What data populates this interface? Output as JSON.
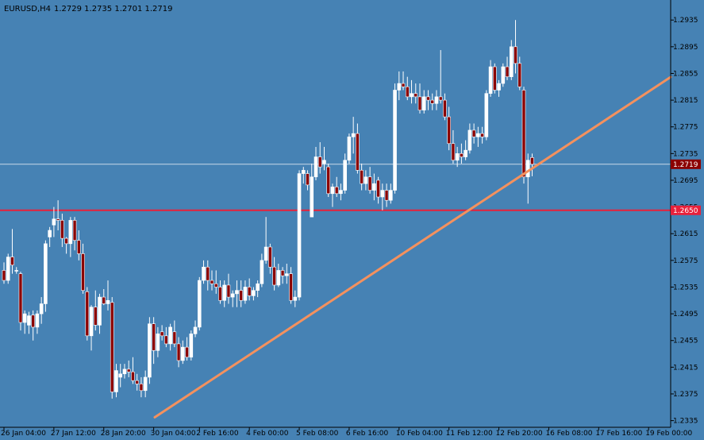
{
  "header": {
    "symbol_label": "EURUSD,H4",
    "ohlc_label": "1.2729 1.2735 1.2701 1.2719"
  },
  "price_tags": {
    "current": "1.2719",
    "level": "1.2650"
  },
  "colors": {
    "background": "#4682B4",
    "bull_body": "#FFFFFF",
    "bear_body": "#8B0000",
    "wick": "#FFFFFF",
    "trendline": "#F4915E",
    "level_line": "#E8203A",
    "current_line": "#C8D8E8",
    "axis": "#000000",
    "text": "#000000"
  },
  "chart_data": {
    "type": "candlestick",
    "title": "EURUSD,H4",
    "ylim": [
      1.2325,
      1.2965
    ],
    "yticks": [
      "1.2935",
      "1.2895",
      "1.2855",
      "1.2815",
      "1.2775",
      "1.2735",
      "1.2695",
      "1.2655",
      "1.2615",
      "1.2575",
      "1.2535",
      "1.2495",
      "1.2455",
      "1.2415",
      "1.2375",
      "1.2335"
    ],
    "xticks": [
      {
        "label": "26 Jan 04:00",
        "index": 0
      },
      {
        "label": "27 Jan 12:00",
        "index": 12
      },
      {
        "label": "28 Jan 20:00",
        "index": 24
      },
      {
        "label": "30 Jan 04:00",
        "index": 36
      },
      {
        "label": "2 Feb 16:00",
        "index": 47
      },
      {
        "label": "4 Feb 00:00",
        "index": 59
      },
      {
        "label": "5 Feb 08:00",
        "index": 71
      },
      {
        "label": "6 Feb 16:00",
        "index": 83
      },
      {
        "label": "10 Feb 04:00",
        "index": 95
      },
      {
        "label": "11 Feb 12:00",
        "index": 107
      },
      {
        "label": "12 Feb 20:00",
        "index": 119
      },
      {
        "label": "16 Feb 08:00",
        "index": 131
      },
      {
        "label": "17 Feb 16:00",
        "index": 143
      },
      {
        "label": "19 Feb 00:00",
        "index": 155
      }
    ],
    "candles": [
      [
        1.256,
        1.2572,
        1.254,
        1.2545
      ],
      [
        1.2545,
        1.2585,
        1.254,
        1.258
      ],
      [
        1.258,
        1.2622,
        1.2555,
        1.2568
      ],
      [
        1.256,
        1.2565,
        1.2555,
        1.256
      ],
      [
        1.2555,
        1.2558,
        1.247,
        1.2482
      ],
      [
        1.2482,
        1.25,
        1.2465,
        1.2495
      ],
      [
        1.2478,
        1.2498,
        1.2465,
        1.2492
      ],
      [
        1.2493,
        1.25,
        1.2455,
        1.2475
      ],
      [
        1.2475,
        1.25,
        1.2465,
        1.2495
      ],
      [
        1.2495,
        1.252,
        1.248,
        1.251
      ],
      [
        1.251,
        1.2605,
        1.2498,
        1.26
      ],
      [
        1.261,
        1.2625,
        1.2595,
        1.262
      ],
      [
        1.2628,
        1.2655,
        1.261,
        1.2637
      ],
      [
        1.2637,
        1.2665,
        1.262,
        1.2635
      ],
      [
        1.2635,
        1.2645,
        1.2595,
        1.2608
      ],
      [
        1.2608,
        1.261,
        1.2585,
        1.26
      ],
      [
        1.26,
        1.264,
        1.258,
        1.2635
      ],
      [
        1.2635,
        1.264,
        1.259,
        1.2605
      ],
      [
        1.2605,
        1.262,
        1.2575,
        1.2585
      ],
      [
        1.2585,
        1.26,
        1.2525,
        1.253
      ],
      [
        1.2528,
        1.2535,
        1.2455,
        1.2462
      ],
      [
        1.2462,
        1.2508,
        1.244,
        1.2505
      ],
      [
        1.2505,
        1.253,
        1.247,
        1.2478
      ],
      [
        1.2478,
        1.2525,
        1.2465,
        1.252
      ],
      [
        1.252,
        1.2532,
        1.2508,
        1.251
      ],
      [
        1.251,
        1.2545,
        1.25,
        1.2515
      ],
      [
        1.2512,
        1.252,
        1.2368,
        1.2378
      ],
      [
        1.2378,
        1.242,
        1.237,
        1.241
      ],
      [
        1.24,
        1.242,
        1.2385,
        1.2405
      ],
      [
        1.2405,
        1.242,
        1.2398,
        1.2412
      ],
      [
        1.2412,
        1.2425,
        1.24,
        1.2408
      ],
      [
        1.2408,
        1.243,
        1.239,
        1.2395
      ],
      [
        1.2395,
        1.2405,
        1.238,
        1.239
      ],
      [
        1.239,
        1.24,
        1.237,
        1.238
      ],
      [
        1.238,
        1.241,
        1.237,
        1.24
      ],
      [
        1.24,
        1.249,
        1.239,
        1.248
      ],
      [
        1.248,
        1.249,
        1.242,
        1.244
      ],
      [
        1.244,
        1.2475,
        1.243,
        1.2465
      ],
      [
        1.2468,
        1.2478,
        1.2455,
        1.2462
      ],
      [
        1.2462,
        1.2475,
        1.2445,
        1.245
      ],
      [
        1.245,
        1.248,
        1.244,
        1.2475
      ],
      [
        1.2468,
        1.2485,
        1.2445,
        1.245
      ],
      [
        1.245,
        1.246,
        1.2415,
        1.2425
      ],
      [
        1.2425,
        1.2455,
        1.242,
        1.2445
      ],
      [
        1.2445,
        1.246,
        1.2425,
        1.243
      ],
      [
        1.243,
        1.247,
        1.2425,
        1.2465
      ],
      [
        1.2465,
        1.2485,
        1.246,
        1.2475
      ],
      [
        1.2475,
        1.255,
        1.247,
        1.2545
      ],
      [
        1.2545,
        1.2575,
        1.254,
        1.2565
      ],
      [
        1.2565,
        1.2575,
        1.253,
        1.2545
      ],
      [
        1.2545,
        1.256,
        1.253,
        1.254
      ],
      [
        1.254,
        1.256,
        1.2525,
        1.2535
      ],
      [
        1.2535,
        1.2545,
        1.251,
        1.2515
      ],
      [
        1.2515,
        1.2545,
        1.2505,
        1.2538
      ],
      [
        1.2538,
        1.2555,
        1.251,
        1.252
      ],
      [
        1.252,
        1.253,
        1.2505,
        1.2525
      ],
      [
        1.2525,
        1.2545,
        1.2505,
        1.253
      ],
      [
        1.253,
        1.2545,
        1.2505,
        1.2515
      ],
      [
        1.2515,
        1.2545,
        1.251,
        1.2535
      ],
      [
        1.2535,
        1.2548,
        1.2515,
        1.2522
      ],
      [
        1.2522,
        1.2535,
        1.2515,
        1.253
      ],
      [
        1.253,
        1.2545,
        1.252,
        1.254
      ],
      [
        1.254,
        1.2585,
        1.2535,
        1.2575
      ],
      [
        1.2575,
        1.264,
        1.257,
        1.2595
      ],
      [
        1.2595,
        1.26,
        1.2555,
        1.2565
      ],
      [
        1.2565,
        1.258,
        1.253,
        1.2538
      ],
      [
        1.2538,
        1.257,
        1.2535,
        1.256
      ],
      [
        1.256,
        1.2565,
        1.254,
        1.2552
      ],
      [
        1.2552,
        1.257,
        1.254,
        1.2555
      ],
      [
        1.2555,
        1.2565,
        1.251,
        1.2515
      ],
      [
        1.2515,
        1.253,
        1.2505,
        1.252
      ],
      [
        1.252,
        1.271,
        1.2515,
        1.2705
      ],
      [
        1.2705,
        1.2715,
        1.269,
        1.271
      ],
      [
        1.2705,
        1.271,
        1.268,
        1.2688
      ],
      [
        1.264,
        1.272,
        1.264,
        1.27
      ],
      [
        1.27,
        1.2745,
        1.2695,
        1.273
      ],
      [
        1.273,
        1.2752,
        1.2705,
        1.2715
      ],
      [
        1.272,
        1.2745,
        1.271,
        1.2725
      ],
      [
        1.2715,
        1.272,
        1.267,
        1.2675
      ],
      [
        1.2675,
        1.269,
        1.2655,
        1.2685
      ],
      [
        1.2685,
        1.27,
        1.267,
        1.2675
      ],
      [
        1.2675,
        1.269,
        1.2665,
        1.268
      ],
      [
        1.268,
        1.2735,
        1.2675,
        1.2725
      ],
      [
        1.2725,
        1.2765,
        1.272,
        1.276
      ],
      [
        1.276,
        1.279,
        1.2735,
        1.2765
      ],
      [
        1.2765,
        1.278,
        1.2705,
        1.271
      ],
      [
        1.271,
        1.272,
        1.268,
        1.269
      ],
      [
        1.269,
        1.271,
        1.268,
        1.27
      ],
      [
        1.27,
        1.2715,
        1.2675,
        1.268
      ],
      [
        1.268,
        1.2705,
        1.2665,
        1.269
      ],
      [
        1.2695,
        1.27,
        1.266,
        1.267
      ],
      [
        1.267,
        1.269,
        1.265,
        1.268
      ],
      [
        1.268,
        1.269,
        1.2655,
        1.2665
      ],
      [
        1.2665,
        1.269,
        1.266,
        1.268
      ],
      [
        1.268,
        1.284,
        1.2675,
        1.283
      ],
      [
        1.283,
        1.2858,
        1.2815,
        1.284
      ],
      [
        1.284,
        1.2858,
        1.283,
        1.2835
      ],
      [
        1.2835,
        1.285,
        1.2815,
        1.282
      ],
      [
        1.282,
        1.2845,
        1.281,
        1.2825
      ],
      [
        1.2825,
        1.284,
        1.281,
        1.282
      ],
      [
        1.282,
        1.284,
        1.2795,
        1.28
      ],
      [
        1.28,
        1.283,
        1.2795,
        1.282
      ],
      [
        1.282,
        1.283,
        1.28,
        1.2815
      ],
      [
        1.2815,
        1.2825,
        1.28,
        1.281
      ],
      [
        1.281,
        1.283,
        1.28,
        1.282
      ],
      [
        1.282,
        1.289,
        1.281,
        1.2815
      ],
      [
        1.2815,
        1.2825,
        1.2785,
        1.279
      ],
      [
        1.279,
        1.2805,
        1.274,
        1.275
      ],
      [
        1.275,
        1.277,
        1.272,
        1.2725
      ],
      [
        1.2725,
        1.2745,
        1.2715,
        1.2735
      ],
      [
        1.2735,
        1.275,
        1.272,
        1.273
      ],
      [
        1.273,
        1.2755,
        1.2725,
        1.274
      ],
      [
        1.274,
        1.278,
        1.2735,
        1.277
      ],
      [
        1.277,
        1.278,
        1.275,
        1.276
      ],
      [
        1.276,
        1.2775,
        1.2745,
        1.2765
      ],
      [
        1.2765,
        1.2775,
        1.275,
        1.276
      ],
      [
        1.276,
        1.283,
        1.2755,
        1.2825
      ],
      [
        1.2825,
        1.2875,
        1.282,
        1.2865
      ],
      [
        1.2865,
        1.287,
        1.2825,
        1.283
      ],
      [
        1.283,
        1.2845,
        1.282,
        1.284
      ],
      [
        1.284,
        1.287,
        1.2835,
        1.2865
      ],
      [
        1.2865,
        1.288,
        1.2845,
        1.285
      ],
      [
        1.285,
        1.2905,
        1.2845,
        1.2895
      ],
      [
        1.2895,
        1.2935,
        1.2855,
        1.287
      ],
      [
        1.287,
        1.288,
        1.283,
        1.2835
      ],
      [
        1.283,
        1.2835,
        1.269,
        1.27
      ],
      [
        1.27,
        1.2735,
        1.266,
        1.2725
      ],
      [
        1.2729,
        1.2735,
        1.2701,
        1.2719
      ]
    ],
    "levels": [
      {
        "name": "current",
        "price": 1.2719
      },
      {
        "name": "horizontal",
        "price": 1.265
      }
    ],
    "trendline": {
      "from_price": 1.234,
      "to_price": 1.283
    }
  }
}
